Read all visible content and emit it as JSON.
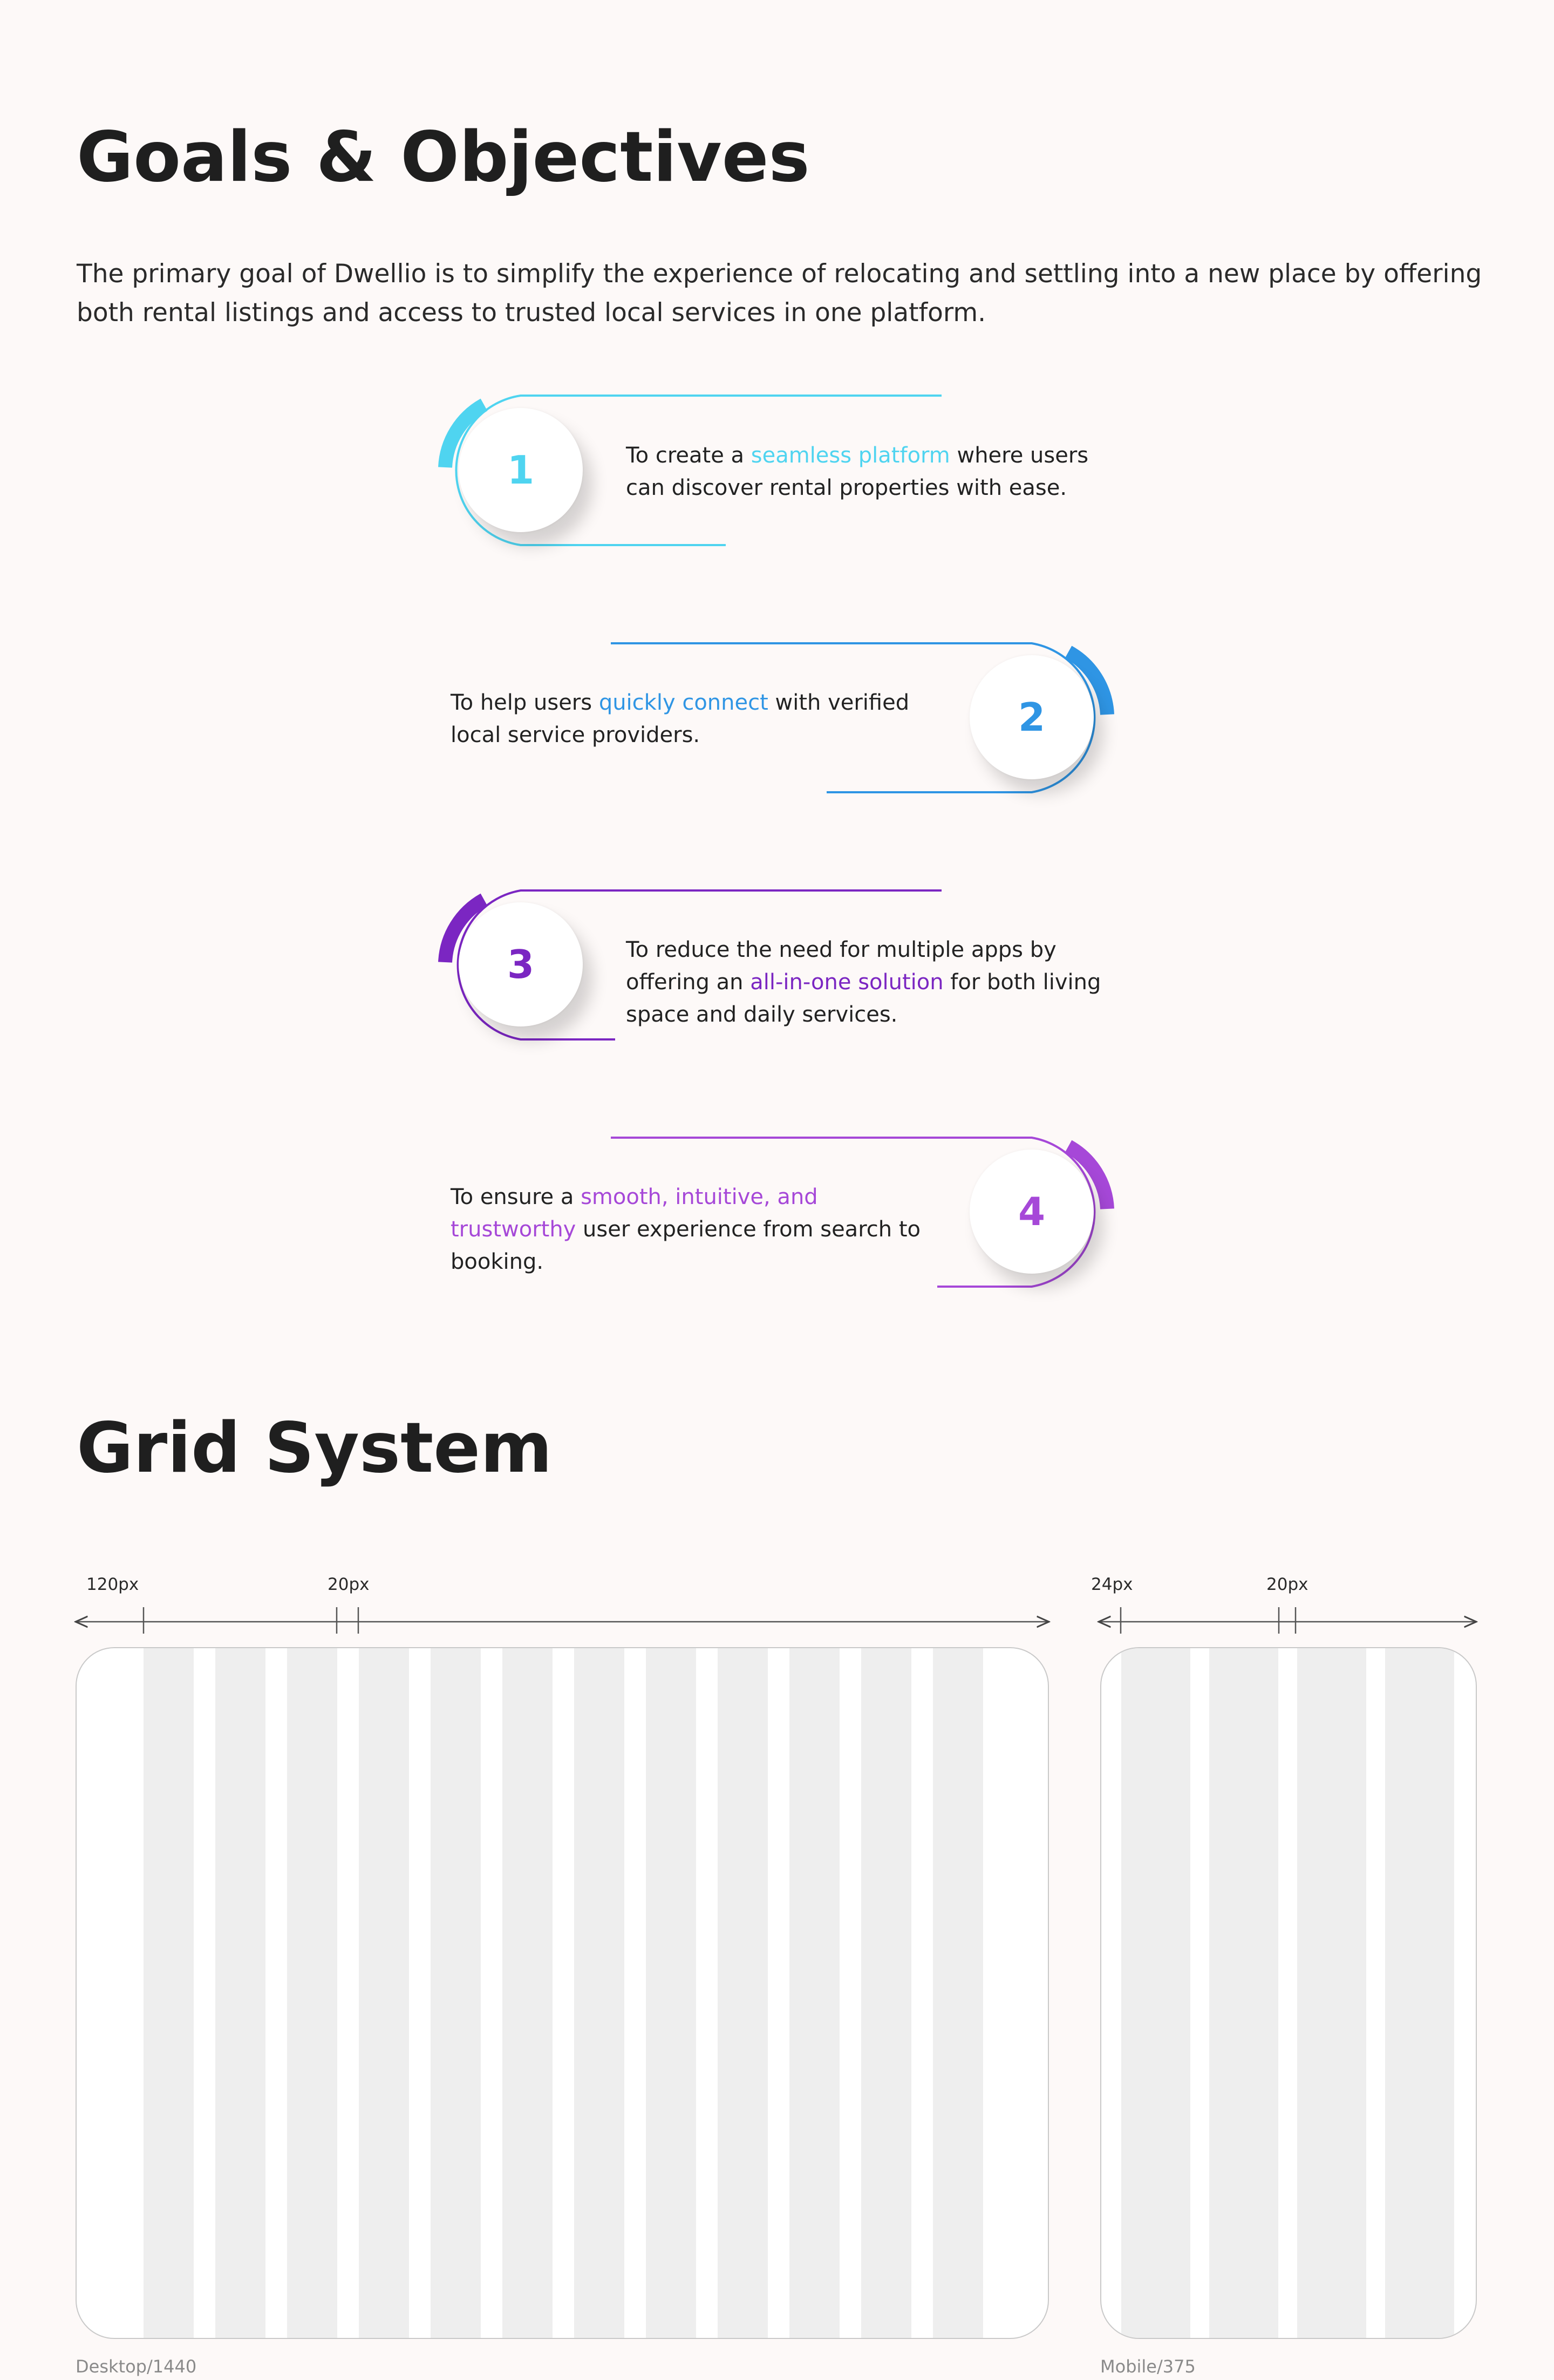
{
  "goals": {
    "title": "Goals & Objectives",
    "intro": "The primary goal of Dwellio is to simplify the experience of relocating and settling into a new place by offering both rental listings and access to trusted local services in one platform.",
    "items": [
      {
        "number": "1",
        "color": "#4fd4f0",
        "before": "To create a ",
        "highlight": "seamless platform",
        "after": " where users can discover rental properties with ease."
      },
      {
        "number": "2",
        "color": "#2f95e4",
        "before": "To help users ",
        "highlight": "quickly connect",
        "after": " with verified local service providers."
      },
      {
        "number": "3",
        "color": "#7b26c2",
        "before": "To reduce the need for multiple apps by offering an ",
        "highlight": "all-in-one solution",
        "after": " for both living space and daily services."
      },
      {
        "number": "4",
        "color": "#a648d8",
        "before": "To ensure a ",
        "highlight": "smooth, intuitive, and trustworthy",
        "after": " user experience from search to booking."
      }
    ]
  },
  "grid": {
    "title": "Grid System",
    "desktop": {
      "margin_label": "120px",
      "gutter_label": "20px",
      "caption": "Desktop/1440",
      "columns": 12
    },
    "mobile": {
      "margin_label": "24px",
      "gutter_label": "20px",
      "caption": "Mobile/375",
      "columns": 4
    }
  }
}
